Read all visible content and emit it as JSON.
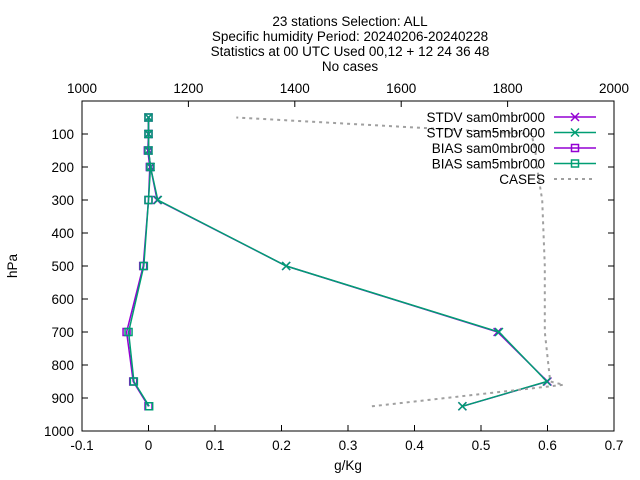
{
  "chart_data": {
    "type": "line",
    "title": [
      "23 stations Selection: ALL",
      "Specific humidity  Period: 20240206-20240228",
      "Statistics at 00 UTC  Used 00,12 + 12 24 36 48",
      "No cases"
    ],
    "xlabel": "g/Kg",
    "ylabel": "hPa",
    "x2label": "",
    "xlim": [
      -0.1,
      0.7
    ],
    "ylim": [
      1000,
      0
    ],
    "x2lim": [
      1000,
      2000
    ],
    "xticks": [
      -0.1,
      0,
      0.1,
      0.2,
      0.3,
      0.4,
      0.5,
      0.6,
      0.7
    ],
    "xtick_labels": [
      "-0.1",
      "0",
      "0.1",
      "0.2",
      "0.3",
      "0.4",
      "0.5",
      "0.6",
      "0.7"
    ],
    "yticks": [
      100,
      200,
      300,
      400,
      500,
      600,
      700,
      800,
      900,
      1000
    ],
    "ytick_labels": [
      "100",
      "200",
      "300",
      "400",
      "500",
      "600",
      "700",
      "800",
      "900",
      "1000"
    ],
    "x2ticks": [
      1000,
      1200,
      1400,
      1600,
      1800,
      2000
    ],
    "x2tick_labels": [
      "1000",
      "1200",
      "1400",
      "1600",
      "1800",
      "2000"
    ],
    "grid": false,
    "legend_position": "top-right",
    "series": [
      {
        "name": "STDV sam0mbr000",
        "axis": "x1",
        "color": "#9400d3",
        "marker": "x",
        "dashed": false,
        "points": [
          [
            0.472,
            925
          ],
          [
            0.6,
            850
          ],
          [
            0.525,
            700
          ],
          [
            0.207,
            500
          ],
          [
            0.013,
            300
          ],
          [
            0.003,
            200
          ],
          [
            0.0,
            150
          ],
          [
            0.0,
            100
          ],
          [
            0.0,
            50
          ]
        ]
      },
      {
        "name": "STDV sam5mbr000",
        "axis": "x1",
        "color": "#009e73",
        "marker": "x",
        "dashed": false,
        "points": [
          [
            0.472,
            925
          ],
          [
            0.599,
            850
          ],
          [
            0.527,
            700
          ],
          [
            0.207,
            500
          ],
          [
            0.014,
            300
          ],
          [
            0.003,
            200
          ],
          [
            0.0,
            150
          ],
          [
            0.0,
            100
          ],
          [
            0.0,
            50
          ]
        ]
      },
      {
        "name": "BIAS sam0mbr000",
        "axis": "x1",
        "color": "#9400d3",
        "marker": "square",
        "dashed": false,
        "points": [
          [
            0.0,
            925
          ],
          [
            -0.023,
            850
          ],
          [
            -0.033,
            700
          ],
          [
            -0.008,
            500
          ],
          [
            0.0,
            300
          ],
          [
            0.002,
            200
          ],
          [
            -0.001,
            150
          ],
          [
            0.0,
            100
          ],
          [
            0.0,
            50
          ]
        ]
      },
      {
        "name": "BIAS sam5mbr000",
        "axis": "x1",
        "color": "#009e73",
        "marker": "square",
        "dashed": false,
        "points": [
          [
            0.001,
            925
          ],
          [
            -0.022,
            850
          ],
          [
            -0.03,
            700
          ],
          [
            -0.007,
            500
          ],
          [
            0.0,
            300
          ],
          [
            0.003,
            200
          ],
          [
            0.0,
            150
          ],
          [
            0.0,
            100
          ],
          [
            0.0,
            50
          ]
        ]
      },
      {
        "name": "CASES",
        "axis": "x2",
        "color": "#a0a0a0",
        "marker": "none",
        "dashed": true,
        "points": [
          [
            1545,
            925
          ],
          [
            1905,
            860
          ],
          [
            1880,
            850
          ],
          [
            1870,
            700
          ],
          [
            1870,
            500
          ],
          [
            1865,
            300
          ],
          [
            1855,
            200
          ],
          [
            1852,
            150
          ],
          [
            1845,
            100
          ],
          [
            1290,
            50
          ]
        ]
      }
    ]
  }
}
